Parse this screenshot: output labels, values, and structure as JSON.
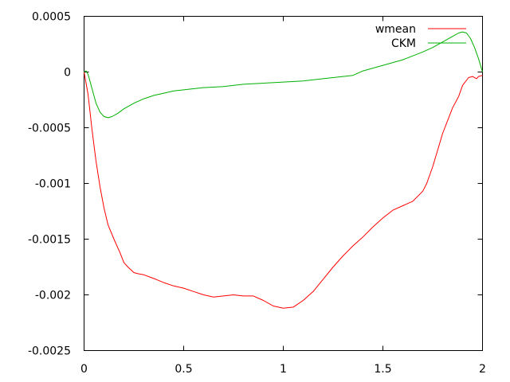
{
  "chart_data": {
    "type": "line",
    "title": "",
    "xlabel": "",
    "ylabel": "",
    "xlim": [
      0,
      2
    ],
    "ylim": [
      -0.0025,
      0.0005
    ],
    "x_ticks": [
      {
        "value": 0,
        "label": "0"
      },
      {
        "value": 0.5,
        "label": "0.5"
      },
      {
        "value": 1,
        "label": "1"
      },
      {
        "value": 1.5,
        "label": "1.5"
      },
      {
        "value": 2,
        "label": "2"
      }
    ],
    "y_ticks": [
      {
        "value": 0.0005,
        "label": "0.0005"
      },
      {
        "value": 0,
        "label": "0"
      },
      {
        "value": -0.0005,
        "label": "-0.0005"
      },
      {
        "value": -0.001,
        "label": "-0.001"
      },
      {
        "value": -0.0015,
        "label": "-0.0015"
      },
      {
        "value": -0.002,
        "label": "-0.002"
      },
      {
        "value": -0.0025,
        "label": "-0.0025"
      }
    ],
    "grid": false,
    "legend_position": "top-right",
    "series": [
      {
        "name": "wmean",
        "color": "#ff0000",
        "x": [
          0,
          0.02,
          0.04,
          0.06,
          0.08,
          0.1,
          0.12,
          0.15,
          0.18,
          0.2,
          0.22,
          0.25,
          0.27,
          0.3,
          0.33,
          0.36,
          0.4,
          0.45,
          0.5,
          0.55,
          0.6,
          0.65,
          0.7,
          0.75,
          0.8,
          0.85,
          0.9,
          0.95,
          1.0,
          1.05,
          1.1,
          1.15,
          1.2,
          1.25,
          1.3,
          1.35,
          1.4,
          1.45,
          1.5,
          1.55,
          1.6,
          1.65,
          1.7,
          1.72,
          1.75,
          1.8,
          1.85,
          1.88,
          1.9,
          1.93,
          1.95,
          1.97,
          1.98,
          2.0
        ],
        "y": [
          0,
          -0.0002,
          -0.00052,
          -0.0008,
          -0.00103,
          -0.00122,
          -0.00137,
          -0.0015,
          -0.00162,
          -0.00171,
          -0.00175,
          -0.0018,
          -0.00181,
          -0.00182,
          -0.00184,
          -0.00186,
          -0.00189,
          -0.00192,
          -0.00194,
          -0.00197,
          -0.002,
          -0.00202,
          -0.00201,
          -0.002,
          -0.00201,
          -0.00201,
          -0.00205,
          -0.0021,
          -0.00212,
          -0.00211,
          -0.00205,
          -0.00197,
          -0.00186,
          -0.00175,
          -0.00165,
          -0.00156,
          -0.00148,
          -0.00139,
          -0.00131,
          -0.00124,
          -0.0012,
          -0.00116,
          -0.00107,
          -0.001,
          -0.00085,
          -0.00055,
          -0.00032,
          -0.00022,
          -0.00012,
          -5e-05,
          -4e-05,
          -6e-05,
          -4e-05,
          -3e-05
        ]
      },
      {
        "name": "CKM",
        "color": "#00b000",
        "x": [
          0,
          0.01,
          0.02,
          0.04,
          0.06,
          0.08,
          0.1,
          0.12,
          0.14,
          0.17,
          0.2,
          0.25,
          0.3,
          0.35,
          0.4,
          0.45,
          0.5,
          0.6,
          0.7,
          0.8,
          0.9,
          1.0,
          1.1,
          1.2,
          1.3,
          1.35,
          1.4,
          1.5,
          1.6,
          1.7,
          1.75,
          1.8,
          1.85,
          1.88,
          1.9,
          1.92,
          1.94,
          1.96,
          1.98,
          1.99,
          2.0
        ],
        "y": [
          0,
          1e-05,
          -2e-05,
          -0.00015,
          -0.00028,
          -0.00036,
          -0.0004,
          -0.00041,
          -0.0004,
          -0.00037,
          -0.00033,
          -0.00028,
          -0.00024,
          -0.00021,
          -0.00019,
          -0.00017,
          -0.00016,
          -0.00014,
          -0.00013,
          -0.00011,
          -0.0001,
          -9e-05,
          -8e-05,
          -6e-05,
          -4e-05,
          -3e-05,
          1e-05,
          6e-05,
          0.00011,
          0.00018,
          0.00022,
          0.00027,
          0.00032,
          0.00035,
          0.00036,
          0.00035,
          0.0003,
          0.00022,
          0.00012,
          6e-05,
          0
        ]
      }
    ]
  }
}
